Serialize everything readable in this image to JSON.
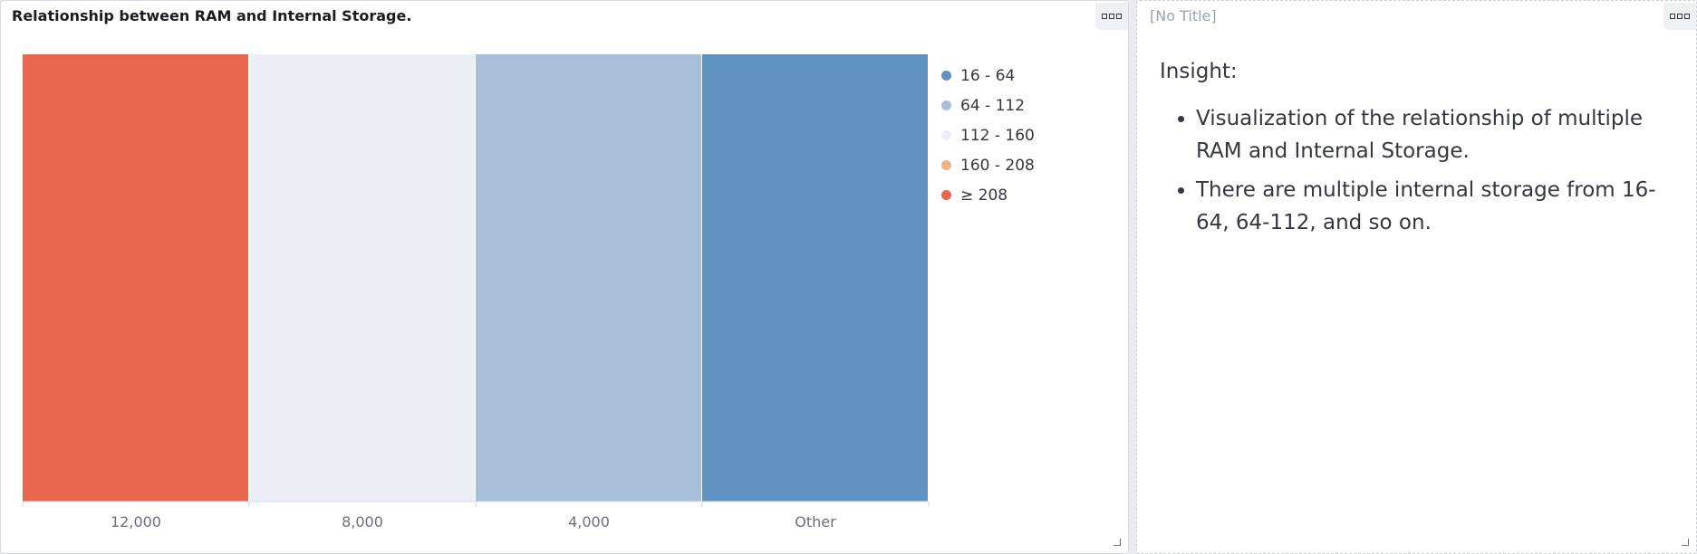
{
  "panels": {
    "chart": {
      "title": "Relationship between RAM and Internal Storage."
    },
    "insight": {
      "title": "[No Title]",
      "heading": "Insight:",
      "bullets": [
        "Visualization of the relationship of multiple RAM and Internal Storage.",
        "There are multiple internal storage from 16-64, 64-112, and so on."
      ]
    }
  },
  "colors": {
    "range_16_64": "#6092c0",
    "range_64_112": "#a8bfda",
    "range_112_160": "#ebeff5",
    "range_160_208": "#ecb385",
    "range_208_plus": "#e7664c"
  },
  "chart_data": {
    "type": "bar",
    "title": "Relationship between RAM and Internal Storage.",
    "categories": [
      "12,000",
      "8,000",
      "4,000",
      "Other"
    ],
    "bar_colors": [
      "#e7664c",
      "#ebeff5",
      "#a8bfda",
      "#6092c0"
    ],
    "values": [
      1,
      1,
      1,
      1
    ],
    "ylim": [
      0,
      1
    ],
    "grid": false,
    "legend_position": "right",
    "legend": [
      {
        "label": "16 - 64",
        "color": "#6092c0"
      },
      {
        "label": "64 - 112",
        "color": "#a8bfda"
      },
      {
        "label": "112 - 160",
        "color": "#ebeff5"
      },
      {
        "label": "160 - 208",
        "color": "#ecb385"
      },
      {
        "label": "≥ 208",
        "color": "#e7664c"
      }
    ]
  }
}
